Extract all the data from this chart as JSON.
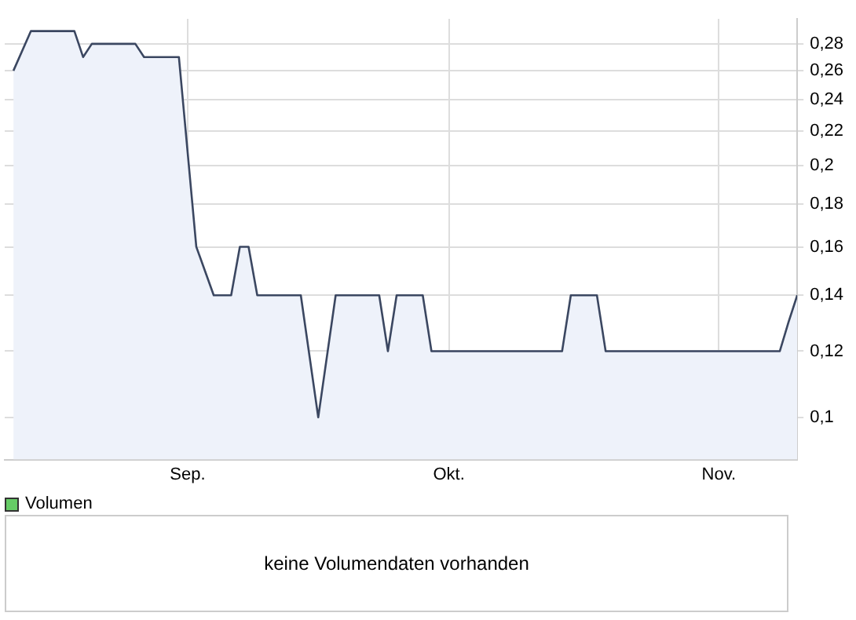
{
  "chart_data": [
    {
      "type": "area",
      "x": [
        "--08-12",
        "--08-14",
        "--08-19",
        "--08-20",
        "--08-21",
        "--08-26",
        "--08-27",
        "--08-31",
        "--09-02",
        "--09-04",
        "--09-06",
        "--09-07",
        "--09-08",
        "--09-09",
        "--09-14",
        "--09-16",
        "--09-18",
        "--09-23",
        "--09-24",
        "--09-25",
        "--09-28",
        "--09-29",
        "--10-14",
        "--10-15",
        "--10-18",
        "--10-19",
        "--11-08",
        "--11-09",
        "--11-10"
      ],
      "series": [
        {
          "color": "#3b4761",
          "values": [
            0.26,
            0.29,
            0.29,
            0.27,
            0.28,
            0.28,
            0.27,
            0.27,
            0.16,
            0.14,
            0.14,
            0.16,
            0.16,
            0.14,
            0.14,
            0.1,
            0.14,
            0.14,
            0.12,
            0.14,
            0.14,
            0.12,
            0.12,
            0.14,
            0.14,
            0.12,
            0.12,
            0.13,
            0.14
          ]
        }
      ],
      "log": "y",
      "ylim": [
        0.089,
        0.3
      ],
      "yticks": [
        {
          "value": 0.1,
          "label": "0,1"
        },
        {
          "value": 0.12,
          "label": "0,12"
        },
        {
          "value": 0.14,
          "label": "0,14"
        },
        {
          "value": 0.16,
          "label": "0,16"
        },
        {
          "value": 0.18,
          "label": "0,18"
        },
        {
          "value": 0.2,
          "label": "0,2"
        },
        {
          "value": 0.22,
          "label": "0,22"
        },
        {
          "value": 0.24,
          "label": "0,24"
        },
        {
          "value": 0.26,
          "label": "0,26"
        },
        {
          "value": 0.28,
          "label": "0,28"
        }
      ],
      "xlim": [
        "--08-11",
        "--11-10"
      ],
      "xticks": [
        {
          "value": "--09-01",
          "label": "Sep."
        },
        {
          "value": "--10-01",
          "label": "Okt."
        },
        {
          "value": "--11-01",
          "label": "Nov."
        }
      ],
      "grid": true,
      "legend": false
    },
    {
      "type": "other",
      "title": "Volumen",
      "annotations": [
        "keine Volumendaten vorhanden"
      ]
    }
  ]
}
